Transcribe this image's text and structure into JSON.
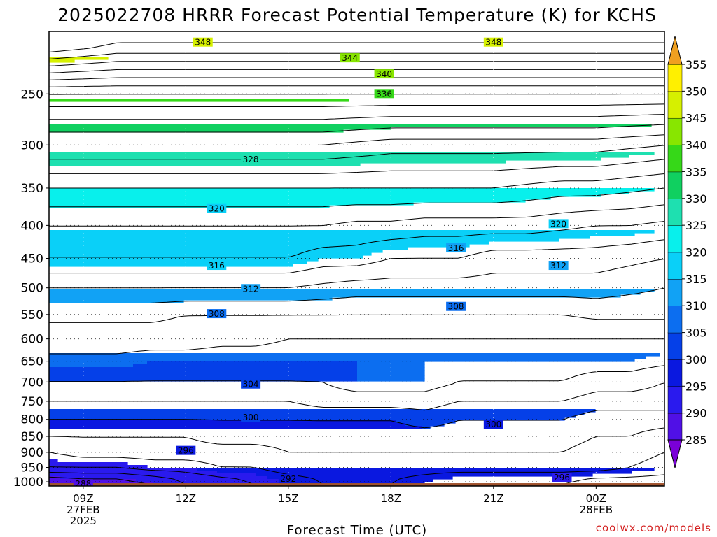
{
  "chart_data": {
    "type": "heatmap",
    "title": "2025022708 HRRR Forecast Potential Temperature (K) for KCHS",
    "xlabel": "Forecast Time (UTC)",
    "ylabel": "",
    "x_ticks": [
      {
        "label": "09Z",
        "sub1": "27FEB",
        "sub2": "2025",
        "hour": 1
      },
      {
        "label": "12Z",
        "sub1": "",
        "sub2": "",
        "hour": 4
      },
      {
        "label": "15Z",
        "sub1": "",
        "sub2": "",
        "hour": 7
      },
      {
        "label": "18Z",
        "sub1": "",
        "sub2": "",
        "hour": 10
      },
      {
        "label": "21Z",
        "sub1": "",
        "sub2": "",
        "hour": 13
      },
      {
        "label": "00Z",
        "sub1": "28FEB",
        "sub2": "",
        "hour": 16
      }
    ],
    "x_range_hours": [
      0,
      18
    ],
    "y_scale": "log",
    "y_range_hpa": [
      1015,
      200
    ],
    "y_ticks": [
      250,
      300,
      350,
      400,
      450,
      500,
      550,
      600,
      650,
      700,
      750,
      800,
      850,
      900,
      950,
      1000
    ],
    "colorbar": {
      "levels": [
        285,
        290,
        295,
        300,
        305,
        310,
        315,
        320,
        325,
        330,
        335,
        340,
        345,
        350,
        355
      ],
      "colors": [
        "#7a00d8",
        "#5010e6",
        "#2a1aee",
        "#0a18e0",
        "#0540e8",
        "#0c6ef0",
        "#11a2f5",
        "#0ad0f8",
        "#08f0ec",
        "#1ee0b0",
        "#10d060",
        "#36d818",
        "#88e600",
        "#d6f000",
        "#fff000",
        "#ffc000"
      ],
      "under_color": "#7a00d8",
      "over_color": "#f0a020"
    },
    "ground_color": "#a0522d",
    "levels_hpa": [
      1000,
      950,
      900,
      850,
      800,
      750,
      700,
      650,
      600,
      550,
      500,
      450,
      400,
      350,
      300,
      250,
      210
    ],
    "theta_K": [
      [
        288,
        289,
        289,
        290,
        292,
        293,
        294,
        295,
        296,
        296,
        296,
        295,
        294,
        294,
        294,
        294,
        293,
        293,
        293
      ],
      [
        294,
        294,
        294,
        295,
        295,
        296,
        296,
        297,
        297,
        297,
        297,
        297,
        297,
        297,
        297,
        297,
        297,
        296,
        295
      ],
      [
        296,
        297,
        297,
        297,
        297,
        297,
        297,
        298,
        298,
        298,
        298,
        298,
        298,
        298,
        298,
        298,
        297,
        297,
        296
      ],
      [
        298,
        298,
        298,
        298,
        298,
        299,
        299,
        299,
        299,
        299,
        299,
        299,
        299,
        299,
        299,
        299,
        298,
        298,
        297
      ],
      [
        300,
        300,
        300,
        300,
        300,
        300,
        300,
        300,
        300,
        300,
        300,
        301,
        300,
        300,
        300,
        300,
        299,
        299,
        299
      ],
      [
        302,
        302,
        302,
        302,
        302,
        302,
        302,
        302,
        303,
        303,
        303,
        303,
        302,
        302,
        302,
        302,
        301,
        301,
        301
      ],
      [
        304,
        304,
        304,
        304,
        304,
        304,
        304,
        304,
        304,
        305,
        305,
        305,
        304,
        304,
        304,
        304,
        303,
        303,
        302
      ],
      [
        305.5,
        305.5,
        305.5,
        305,
        305,
        305,
        305,
        305,
        305,
        305,
        305,
        305,
        305,
        305,
        305,
        305,
        305,
        305,
        304.5
      ],
      [
        307,
        307,
        307,
        307,
        307,
        306.5,
        306.5,
        306,
        306,
        306,
        306,
        306,
        306,
        306,
        306,
        306,
        306,
        306,
        306
      ],
      [
        308.5,
        308.5,
        308.5,
        308.5,
        308,
        308,
        308,
        308,
        308,
        308,
        308,
        308,
        308,
        308,
        308,
        308,
        308.5,
        308.5,
        308.5
      ],
      [
        312,
        312,
        312,
        312,
        312,
        312,
        312,
        312,
        311.5,
        311,
        311,
        311,
        311,
        311,
        311,
        311,
        311,
        310.5,
        310
      ],
      [
        316,
        316,
        316,
        316,
        316,
        316,
        316,
        316,
        315,
        315,
        314,
        314,
        314,
        313,
        313,
        313,
        313,
        312.5,
        312
      ],
      [
        318,
        318,
        318,
        318,
        318,
        318,
        318,
        318,
        318,
        317.5,
        317.5,
        317,
        317,
        317,
        317,
        316.5,
        316,
        316,
        315.5
      ],
      [
        322,
        322,
        322,
        322,
        322,
        322,
        322,
        322,
        322,
        322,
        322,
        322,
        322,
        322,
        321.5,
        321,
        321,
        320.5,
        320
      ],
      [
        328,
        328,
        328,
        328,
        328,
        328,
        328,
        328,
        328,
        327.5,
        327,
        327,
        327,
        327,
        327,
        327,
        327,
        326.5,
        326
      ],
      [
        336,
        336,
        336,
        336,
        336,
        336,
        336,
        336,
        336,
        336,
        336,
        336,
        336,
        336,
        336,
        336,
        336,
        336,
        336
      ],
      [
        350,
        349,
        348,
        348,
        348,
        348,
        348,
        348,
        348,
        348,
        348,
        348,
        348,
        348,
        348,
        348,
        348,
        348,
        348
      ]
    ],
    "contour_labels": [
      {
        "text": "348",
        "hour": 4.5,
        "hpa": 208
      },
      {
        "text": "348",
        "hour": 13.0,
        "hpa": 208
      },
      {
        "text": "344",
        "hour": 8.8,
        "hpa": 220
      },
      {
        "text": "340",
        "hour": 9.8,
        "hpa": 233
      },
      {
        "text": "336",
        "hour": 9.8,
        "hpa": 250
      },
      {
        "text": "328",
        "hour": 5.9,
        "hpa": 316
      },
      {
        "text": "320",
        "hour": 4.9,
        "hpa": 377
      },
      {
        "text": "320",
        "hour": 14.9,
        "hpa": 398
      },
      {
        "text": "316",
        "hour": 11.9,
        "hpa": 434
      },
      {
        "text": "316",
        "hour": 4.9,
        "hpa": 462
      },
      {
        "text": "312",
        "hour": 14.9,
        "hpa": 462
      },
      {
        "text": "312",
        "hour": 5.9,
        "hpa": 502
      },
      {
        "text": "308",
        "hour": 4.9,
        "hpa": 549
      },
      {
        "text": "308",
        "hour": 11.9,
        "hpa": 535
      },
      {
        "text": "304",
        "hour": 5.9,
        "hpa": 706
      },
      {
        "text": "300",
        "hour": 5.9,
        "hpa": 795
      },
      {
        "text": "300",
        "hour": 13.0,
        "hpa": 815
      },
      {
        "text": "296",
        "hour": 4.0,
        "hpa": 895
      },
      {
        "text": "292",
        "hour": 7.0,
        "hpa": 990
      },
      {
        "text": "288",
        "hour": 1.0,
        "hpa": 1008
      },
      {
        "text": "296",
        "hour": 15.0,
        "hpa": 985
      }
    ]
  },
  "credit": "coolwx.com/models"
}
